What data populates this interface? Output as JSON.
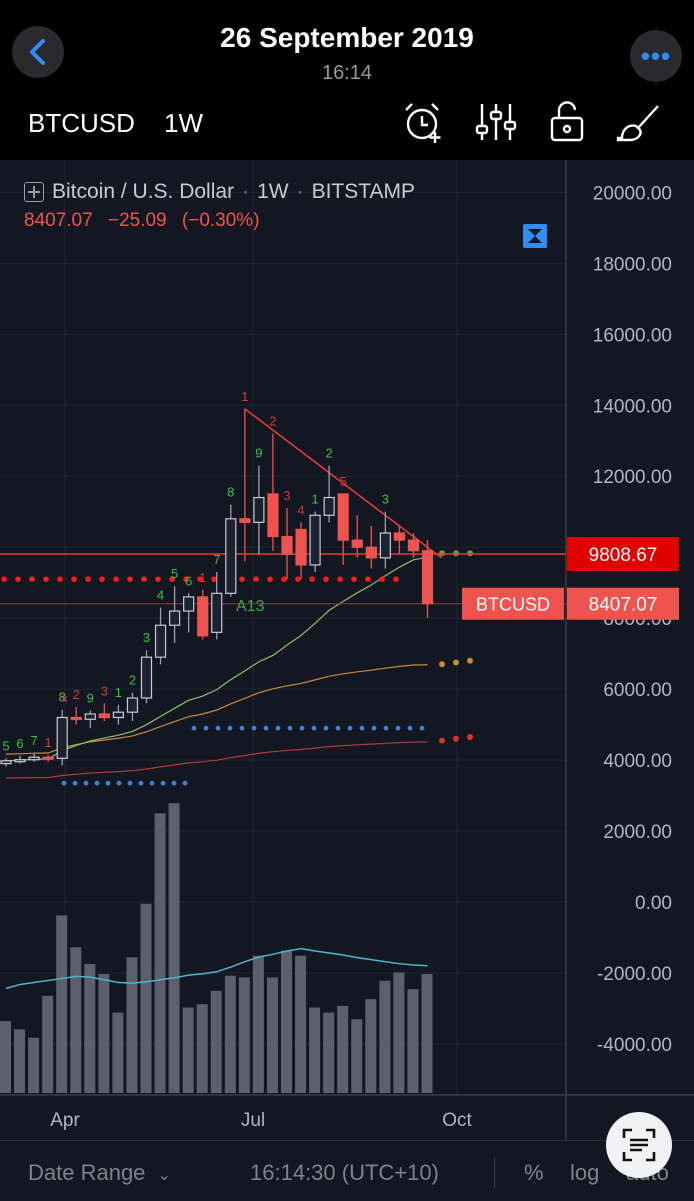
{
  "header": {
    "date": "26 September 2019",
    "time": "16:14",
    "symbol": "BTCUSD",
    "timeframe": "1W",
    "icons": [
      "back-chevron-icon",
      "more-dots-icon",
      "alarm-add-icon",
      "indicator-settings-icon",
      "unlock-icon",
      "brush-icon"
    ]
  },
  "legend": {
    "title_parts": [
      "Bitcoin / U.S. Dollar",
      "1W",
      "BITSTAMP"
    ],
    "separator": "·",
    "price": "8407.07",
    "change": "−25.09",
    "change_pct": "(−0.30%)"
  },
  "colors": {
    "up": "#26a69a",
    "down": "#ef5350",
    "accent": "#2f8df5",
    "bg": "#131722",
    "panel": "#000000"
  },
  "axis": {
    "price_ticks": [
      "20000.00",
      "18000.00",
      "16000.00",
      "14000.00",
      "12000.00",
      "10000.00",
      "8000.00",
      "6000.00",
      "4000.00",
      "2000.00",
      "0.00",
      "-2000.00",
      "-4000.00"
    ],
    "time_ticks": [
      "Apr",
      "Jul",
      "Oct"
    ],
    "price_label_red": "9808.67",
    "price_label_symbol": "BTCUSD",
    "price_label_current": "8407.07"
  },
  "chart_data": {
    "type": "candlestick",
    "timeframe": "1W",
    "ylim": [
      -5000,
      21000
    ],
    "candles": [
      {
        "o": 3900,
        "h": 4050,
        "l": 3820,
        "c": 3980
      },
      {
        "o": 3990,
        "h": 4120,
        "l": 3900,
        "c": 4010
      },
      {
        "o": 4010,
        "h": 4200,
        "l": 3950,
        "c": 4080
      },
      {
        "o": 4080,
        "h": 4150,
        "l": 3950,
        "c": 4050
      },
      {
        "o": 4050,
        "h": 5420,
        "l": 3850,
        "c": 5200
      },
      {
        "o": 5200,
        "h": 5500,
        "l": 5000,
        "c": 5150
      },
      {
        "o": 5150,
        "h": 5400,
        "l": 4900,
        "c": 5300
      },
      {
        "o": 5300,
        "h": 5600,
        "l": 5100,
        "c": 5200
      },
      {
        "o": 5200,
        "h": 5550,
        "l": 5000,
        "c": 5350
      },
      {
        "o": 5350,
        "h": 5900,
        "l": 5100,
        "c": 5750
      },
      {
        "o": 5750,
        "h": 7100,
        "l": 5600,
        "c": 6900
      },
      {
        "o": 6900,
        "h": 8300,
        "l": 6700,
        "c": 7800
      },
      {
        "o": 7800,
        "h": 8900,
        "l": 7300,
        "c": 8200
      },
      {
        "o": 8200,
        "h": 8700,
        "l": 7600,
        "c": 8600
      },
      {
        "o": 8600,
        "h": 8800,
        "l": 7400,
        "c": 7500
      },
      {
        "o": 7600,
        "h": 9300,
        "l": 7400,
        "c": 8700
      },
      {
        "o": 8700,
        "h": 11200,
        "l": 8600,
        "c": 10800
      },
      {
        "o": 10800,
        "h": 13900,
        "l": 9600,
        "c": 10700
      },
      {
        "o": 10700,
        "h": 12300,
        "l": 9800,
        "c": 11400
      },
      {
        "o": 11500,
        "h": 13200,
        "l": 9900,
        "c": 10300
      },
      {
        "o": 10300,
        "h": 11100,
        "l": 9100,
        "c": 9800
      },
      {
        "o": 10500,
        "h": 10700,
        "l": 9100,
        "c": 9500
      },
      {
        "o": 9500,
        "h": 11000,
        "l": 9300,
        "c": 10900
      },
      {
        "o": 10900,
        "h": 12300,
        "l": 10700,
        "c": 11400
      },
      {
        "o": 11500,
        "h": 11500,
        "l": 9500,
        "c": 10200
      },
      {
        "o": 10200,
        "h": 10900,
        "l": 9700,
        "c": 10000
      },
      {
        "o": 10000,
        "h": 10600,
        "l": 9400,
        "c": 9700
      },
      {
        "o": 9700,
        "h": 11000,
        "l": 9400,
        "c": 10400
      },
      {
        "o": 10400,
        "h": 10600,
        "l": 9800,
        "c": 10200
      },
      {
        "o": 10200,
        "h": 10400,
        "l": 9700,
        "c": 9900
      },
      {
        "o": 9900,
        "h": 10200,
        "l": 8000,
        "c": 8407
      }
    ],
    "volume": [
      2150,
      1900,
      1650,
      2900,
      5300,
      4350,
      3850,
      3550,
      2400,
      4050,
      5650,
      8350,
      8650,
      2550,
      2650,
      3050,
      3500,
      3450,
      4100,
      3450,
      4250,
      4100,
      2550,
      2400,
      2600,
      2200,
      2800,
      3350,
      3600,
      3100,
      3550
    ],
    "volume_line": [
      3120,
      3240,
      3300,
      3360,
      3420,
      3480,
      3460,
      3380,
      3300,
      3280,
      3320,
      3380,
      3440,
      3520,
      3560,
      3620,
      3760,
      3920,
      4060,
      4140,
      4240,
      4310,
      4240,
      4180,
      4120,
      4040,
      3980,
      3920,
      3860,
      3820,
      3800
    ],
    "overlays": {
      "descending_trendline": {
        "from_week": 17,
        "from_price": 13900,
        "to_week": 31,
        "to_price": 9700
      },
      "resistance_line": 9808.67,
      "support_line": 8407.07,
      "red_dotted_level": 9100,
      "blue_dotted_level_1": 3350,
      "blue_dotted_level_2": 4900
    },
    "labels_green": [
      "5",
      "6",
      "7",
      "8",
      "9",
      "1",
      "2",
      "3",
      "4",
      "5",
      "6",
      "7",
      "8",
      "9",
      "1",
      "2",
      "3",
      "4",
      "5",
      "1",
      "1"
    ],
    "labels_red": [
      "1",
      "2",
      "3",
      "1",
      "1",
      "2",
      "3",
      "4",
      "5"
    ],
    "annotation": "A13"
  },
  "bottom": {
    "date_range": "Date Range",
    "clock": "16:14:30 (UTC+10)",
    "percent": "%",
    "log": "log",
    "auto": "auto"
  }
}
